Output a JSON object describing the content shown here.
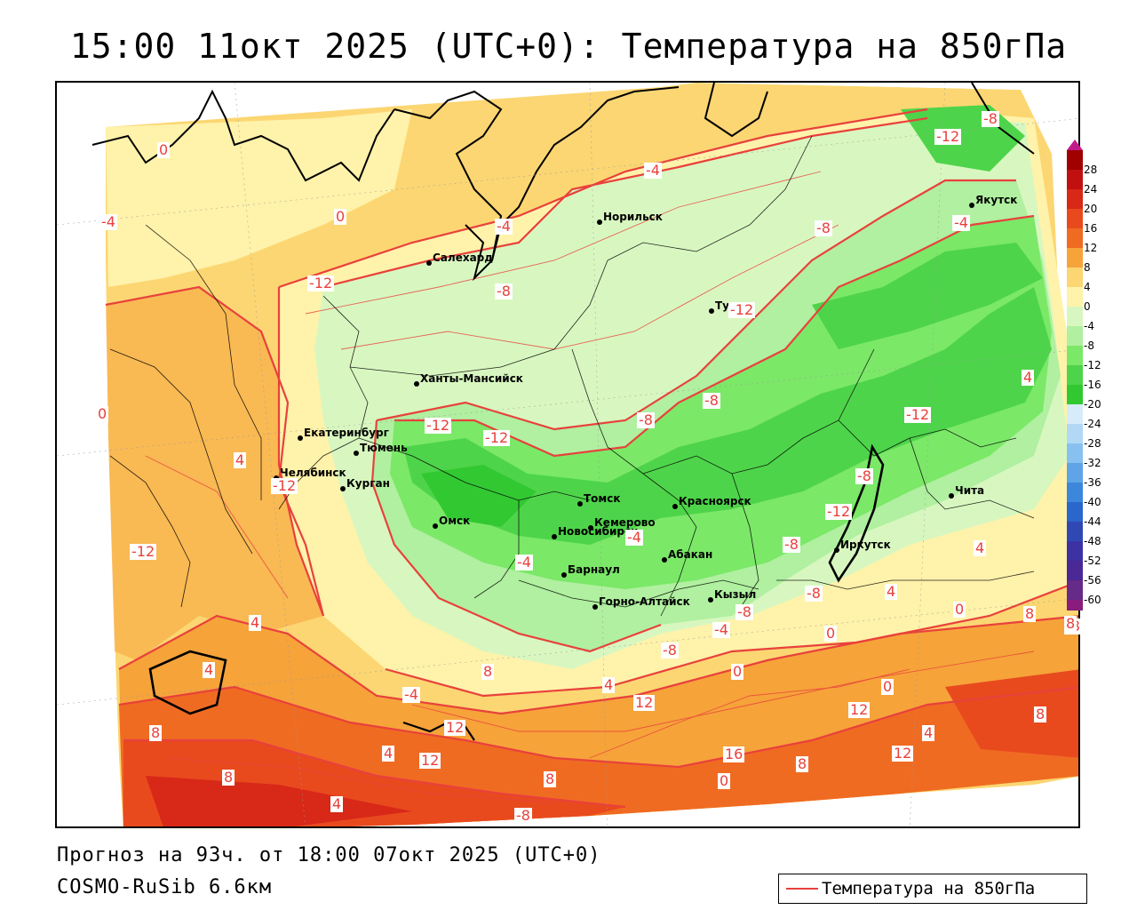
{
  "title": "15:00 11окт 2025 (UTC+0): Температура на 850гПа",
  "footer": {
    "forecast": "Прогноз на 93ч. от 18:00 07окт 2025 (UTC+0)",
    "model": "COSMO-RuSib 6.6км"
  },
  "legend": {
    "label": "Температура на 850гПа",
    "line_color": "#e8413c"
  },
  "colorbar": {
    "ticks": [
      "28",
      "24",
      "20",
      "16",
      "12",
      "8",
      "4",
      "0",
      "-4",
      "-8",
      "-12",
      "-16",
      "-20",
      "-24",
      "-28",
      "-32",
      "-36",
      "-40",
      "-44",
      "-48",
      "-52",
      "-56",
      "-60"
    ],
    "colors": [
      "#a00000",
      "#c01010",
      "#d82818",
      "#e84a1e",
      "#f06b22",
      "#f6a33a",
      "#fcd672",
      "#fff2aa",
      "#d8f7c0",
      "#b0f0a0",
      "#7be868",
      "#4ed44a",
      "#32c832",
      "#d7ecfa",
      "#b2d8f6",
      "#88c0f0",
      "#5ea4e6",
      "#3c86dc",
      "#2a66cc",
      "#3048b4",
      "#3c32a4",
      "#4a2896",
      "#662a88",
      "#8a1c7e"
    ]
  },
  "cities": [
    {
      "name": "Норильск"
    },
    {
      "name": "Салехард"
    },
    {
      "name": "Тура"
    },
    {
      "name": "Якутск"
    },
    {
      "name": "Ханты-Мансийск"
    },
    {
      "name": "Екатеринбург"
    },
    {
      "name": "Тюмень"
    },
    {
      "name": "Челябинск"
    },
    {
      "name": "Курган"
    },
    {
      "name": "Омск"
    },
    {
      "name": "Новосибирск"
    },
    {
      "name": "Томск"
    },
    {
      "name": "Кемерово"
    },
    {
      "name": "Красноярск"
    },
    {
      "name": "Абакан"
    },
    {
      "name": "Барнаул"
    },
    {
      "name": "Горно-Алтайск"
    },
    {
      "name": "Кызыл"
    },
    {
      "name": "Иркутск"
    },
    {
      "name": "Чита"
    }
  ],
  "contour_labels": [
    "0",
    "-4",
    "-12",
    "-8",
    "0",
    "-4",
    "-4",
    "-8",
    "-4",
    "-12",
    "-8",
    "-12",
    "4",
    "-8",
    "-12",
    "-8",
    "-12",
    "0",
    "-12",
    "4",
    "-12",
    "-8",
    "-12",
    "-12",
    "4",
    "-8",
    "-4",
    "4",
    "-4",
    "-8",
    "0",
    "8",
    "0",
    "4",
    "-8",
    "-8",
    "8",
    "0",
    "-4",
    "4",
    "12",
    "0",
    "12",
    "8",
    "4",
    "8",
    "4",
    "12",
    "12",
    "16",
    "8",
    "12",
    "4",
    "8",
    "8",
    "0",
    "-8",
    "-8",
    "4",
    "-4",
    "8"
  ]
}
